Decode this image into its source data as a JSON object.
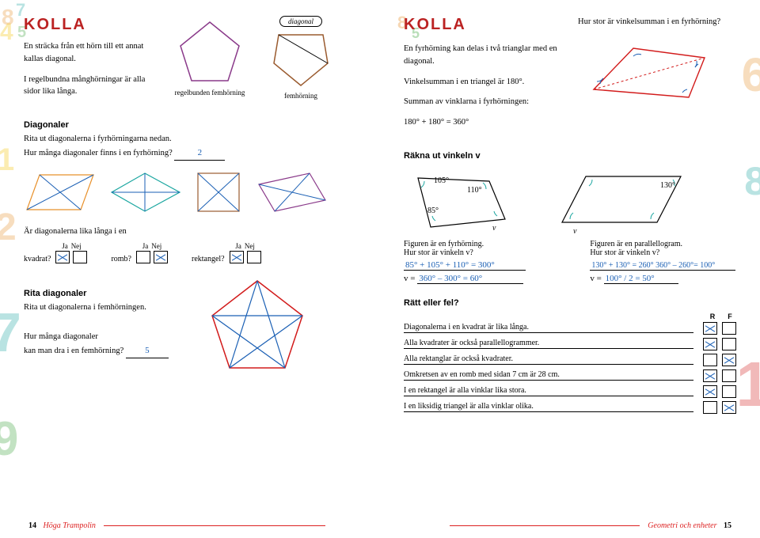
{
  "colors": {
    "teal": "#1aa6a0",
    "brown": "#9a5b2f",
    "orange": "#e8902a",
    "purple": "#8a3a8a",
    "blue": "#1a5fb4",
    "red": "#d21b1b",
    "yellow": "#f2c200",
    "green": "#3aa33a"
  },
  "left": {
    "kolla": "KOLLA",
    "intro1": "En sträcka från ett hörn till ett annat kallas diagonal.",
    "intro2": "I regelbundna månghörningar är alla sidor lika långa.",
    "diag_label": "diagonal",
    "cap1": "regelbunden femhörning",
    "cap2": "femhörning",
    "sec1": "Diagonaler",
    "sec1_text": "Rita ut diagonalerna i fyrhörningarna nedan.",
    "q1": "Hur många diagonaler finns i en fyrhörning?",
    "a1": "2",
    "q2": "Är diagonalerna lika långa i en",
    "shapes": [
      "kvadrat?",
      "romb?",
      "rektangel?"
    ],
    "yn": [
      "Ja",
      "Nej"
    ],
    "yn_marks": [
      [
        true,
        false
      ],
      [
        false,
        true
      ],
      [
        true,
        false
      ]
    ],
    "sec2": "Rita diagonaler",
    "sec2_text": "Rita ut diagonalerna i femhörningen.",
    "q3a": "Hur många diagonaler",
    "q3b": "kan man dra i en femhörning?",
    "a3": "5",
    "page": "14",
    "book": "Höga Trampolin"
  },
  "right": {
    "kolla": "KOLLA",
    "q_top": "Hur stor är vinkelsumman i en fyrhörning?",
    "t1": "En fyrhörning kan delas i två trianglar med en diagonal.",
    "t2": "Vinkelsumman i en triangel är 180°.",
    "t3": "Summan av vinklarna i fyrhörningen:",
    "t4": "180° + 180° = 360°",
    "sec1": "Räkna ut vinkeln v",
    "angles": {
      "a": "105°",
      "b": "110°",
      "c": "85°",
      "d": "130°"
    },
    "fig1_cap": "Figuren är en fyrhörning.\nHur stor är vinkeln v?",
    "fig2_cap": "Figuren är en parallellogram.\nHur stor är vinkeln v?",
    "calc1a": "85° + 105° + 110° = 300°",
    "calc1b_prefix": "v =",
    "calc1b": "360° – 300° = 60°",
    "calc2a": "130° + 130° = 260°  360° – 260°= 100°",
    "calc2b_prefix": "v =",
    "calc2b": "100° / 2 = 50°",
    "sec2": "Rätt eller fel?",
    "rf_head": [
      "R",
      "F"
    ],
    "rf": [
      {
        "t": "Diagonalerna i en kvadrat är lika långa.",
        "r": true,
        "f": false
      },
      {
        "t": "Alla kvadrater är också parallellogrammer.",
        "r": true,
        "f": false
      },
      {
        "t": "Alla rektanglar är också kvadrater.",
        "r": false,
        "f": true
      },
      {
        "t": "Omkretsen av en romb med sidan 7 cm är 28 cm.",
        "r": true,
        "f": false
      },
      {
        "t": "I en rektangel är alla vinklar lika stora.",
        "r": true,
        "f": false
      },
      {
        "t": "I en liksidig triangel är alla vinklar olika.",
        "r": false,
        "f": true
      }
    ],
    "page": "15",
    "section": "Geometri och enheter"
  }
}
